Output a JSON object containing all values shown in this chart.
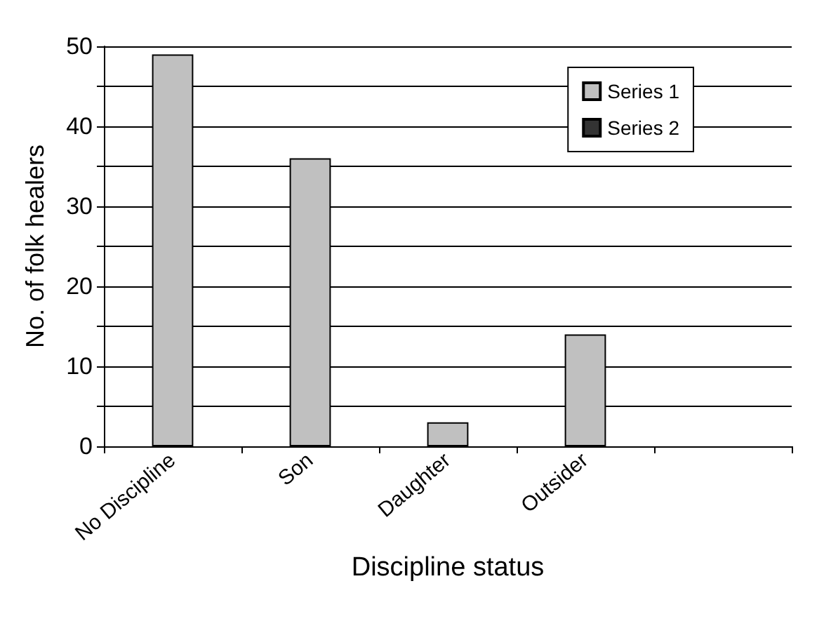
{
  "chart_data": {
    "type": "bar",
    "xlabel": "Discipline status",
    "ylabel": "No. of folk healers",
    "categories": [
      "No Discipline",
      "Son",
      "Daughter",
      "Outsider",
      null
    ],
    "series": [
      {
        "name": "Series 1",
        "color": "#c0c0c0",
        "values": [
          49,
          36,
          3,
          14,
          null
        ]
      },
      {
        "name": "Series 2",
        "color": "#333333",
        "values": [
          null,
          null,
          null,
          null,
          null
        ]
      }
    ],
    "ylim": [
      0,
      50
    ],
    "yticks": [
      0,
      {
        "value": 5,
        "label": null
      },
      10,
      {
        "value": 15,
        "label": null
      },
      20,
      {
        "value": 25,
        "label": null
      },
      30,
      {
        "value": 35,
        "label": null
      },
      40,
      {
        "value": 45,
        "label": null
      },
      50
    ],
    "grid": "y",
    "legend": "top right"
  }
}
